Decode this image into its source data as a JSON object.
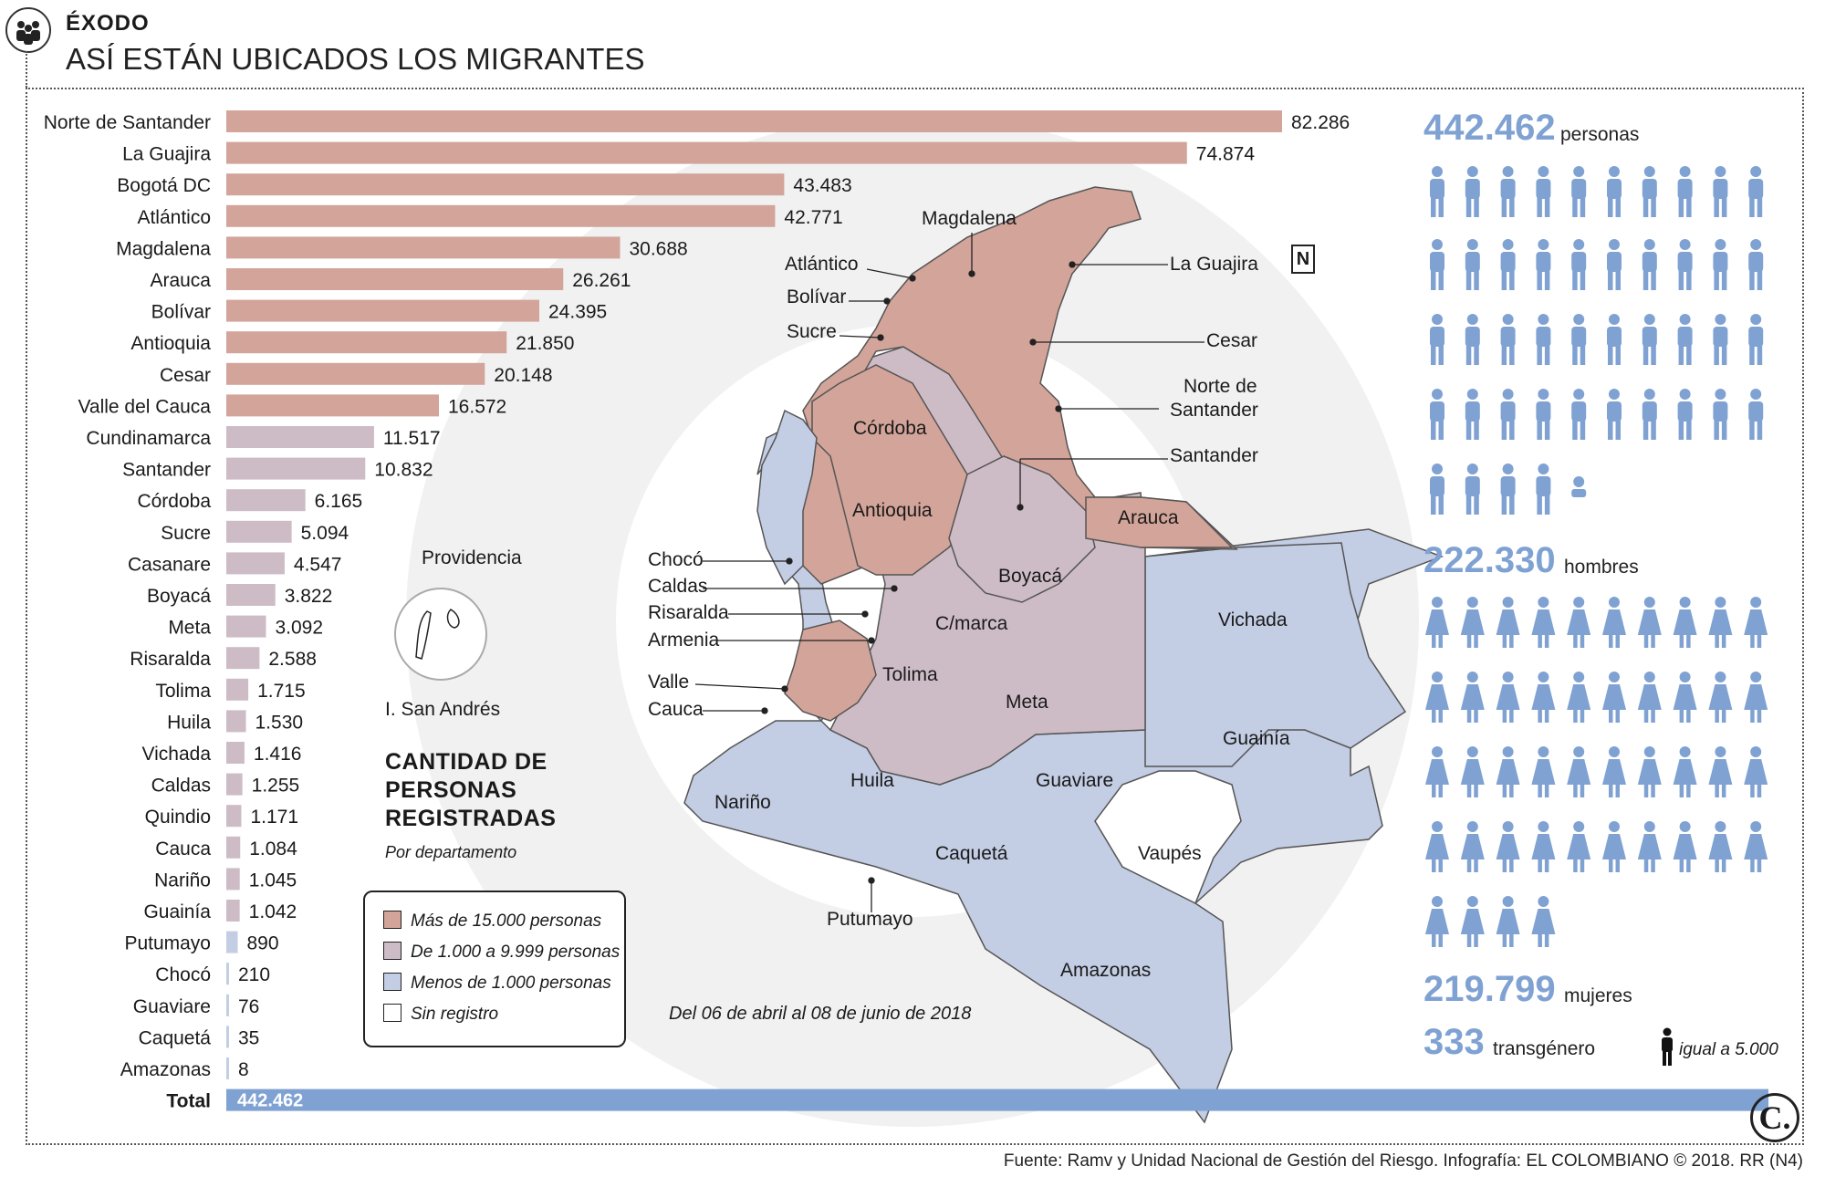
{
  "header": {
    "kicker": "ÉXODO",
    "title": "ASÍ ESTÁN UBICADOS LOS MIGRANTES"
  },
  "colors": {
    "high": "#d3a499",
    "mid": "#cdbcc6",
    "low": "#c3cde3",
    "total": "#7fa2d3",
    "none": "#ffffff"
  },
  "chart_data": {
    "type": "bar",
    "orientation": "horizontal",
    "categories": [
      "Norte de Santander",
      "La Guajira",
      "Bogotá DC",
      "Atlántico",
      "Magdalena",
      "Arauca",
      "Bolívar",
      "Antioquia",
      "Cesar",
      "Valle del Cauca",
      "Cundinamarca",
      "Santander",
      "Córdoba",
      "Sucre",
      "Casanare",
      "Boyacá",
      "Meta",
      "Risaralda",
      "Tolima",
      "Huila",
      "Vichada",
      "Caldas",
      "Quindio",
      "Cauca",
      "Nariño",
      "Guainía",
      "Putumayo",
      "Chocó",
      "Guaviare",
      "Caquetá",
      "Amazonas"
    ],
    "values": [
      82286,
      74874,
      43483,
      42771,
      30688,
      26261,
      24395,
      21850,
      20148,
      16572,
      11517,
      10832,
      6165,
      5094,
      4547,
      3822,
      3092,
      2588,
      1715,
      1530,
      1416,
      1255,
      1171,
      1084,
      1045,
      1042,
      890,
      210,
      76,
      35,
      8
    ],
    "labels": [
      "82.286",
      "74.874",
      "43.483",
      "42.771",
      "30.688",
      "26.261",
      "24.395",
      "21.850",
      "20.148",
      "16.572",
      "11.517",
      "10.832",
      "6.165",
      "5.094",
      "4.547",
      "3.822",
      "3.092",
      "2.588",
      "1.715",
      "1.530",
      "1.416",
      "1.255",
      "1.171",
      "1.084",
      "1.045",
      "1.042",
      "890",
      "210",
      "76",
      "35",
      "8"
    ],
    "total_label": "Total",
    "total_value": "442.462",
    "subtitle": "CANTIDAD DE PERSONAS REGISTRADAS",
    "subtitle_note": "Por departamento",
    "legend": [
      {
        "label": "Más de 15.000 personas",
        "color": "#d3a499"
      },
      {
        "label": "De 1.000 a 9.999 personas",
        "color": "#cdbcc6"
      },
      {
        "label": "Menos de 1.000 personas",
        "color": "#c3cde3"
      },
      {
        "label": "Sin registro",
        "color": "#ffffff"
      }
    ],
    "date_range": "Del 06 de abril al 08 de junio de 2018"
  },
  "map": {
    "labels": {
      "magdalena": "Magdalena",
      "atlantico": "Atlántico",
      "bolivar": "Bolívar",
      "sucre": "Sucre",
      "guajira": "La Guajira",
      "cesar": "Cesar",
      "norte1": "Norte de",
      "norte2": "Santander",
      "santander": "Santander",
      "cordoba": "Córdoba",
      "antioquia": "Antioquia",
      "arauca": "Arauca",
      "choco": "Chocó",
      "caldas": "Caldas",
      "risaralda": "Risaralda",
      "armenia": "Armenia",
      "valle": "Valle",
      "cauca": "Cauca",
      "boyaca": "Boyacá",
      "cmarca": "C/marca",
      "vichada": "Vichada",
      "tolima": "Tolima",
      "meta": "Meta",
      "guainia": "Guainía",
      "huila": "Huila",
      "guaviare": "Guaviare",
      "narino": "Nariño",
      "vaupes": "Vaupés",
      "caqueta": "Caquetá",
      "putumayo": "Putumayo",
      "amazonas": "Amazonas",
      "providencia": "Providencia",
      "sanandres": "I. San Andrés",
      "north": "N"
    }
  },
  "stats": {
    "total_num": "442.462",
    "total_lbl": "personas",
    "men_num": "222.330",
    "men_lbl": "hombres",
    "women_num": "219.799",
    "women_lbl": "mujeres",
    "trans_num": "333",
    "trans_lbl": "transgénero",
    "unit_lbl": "igual a 5.000",
    "men_icons": 44.5,
    "women_icons": 44
  },
  "footer": {
    "source": "Fuente: Ramv y Unidad Nacional de Gestión del Riesgo. Infografía: EL COLOMBIANO © 2018. RR (N4)",
    "logo": "C."
  }
}
